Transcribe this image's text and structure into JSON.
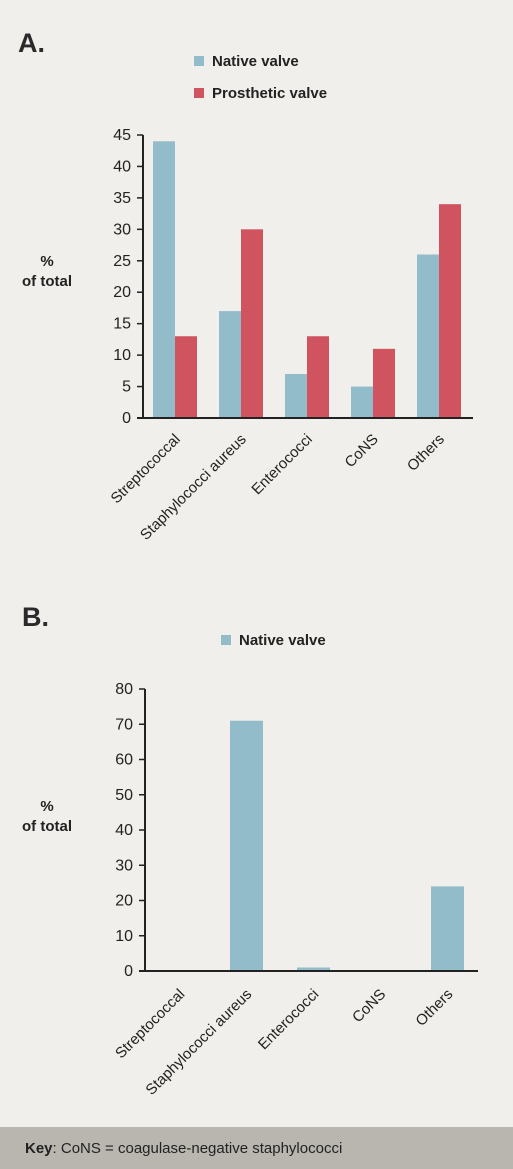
{
  "colors": {
    "native": "#93bccb",
    "prosthetic": "#d05360",
    "axis": "#222222",
    "background": "#f1efeb"
  },
  "chart_data": [
    {
      "type": "bar",
      "panel_label": "A.",
      "categories": [
        "Streptococcal",
        "Staphylococci aureus",
        "Enterococci",
        "CoNS",
        "Others"
      ],
      "series": [
        {
          "name": "Native valve",
          "values": [
            44,
            17,
            7,
            5,
            26
          ]
        },
        {
          "name": "Prosthetic valve",
          "values": [
            13,
            30,
            13,
            11,
            34
          ]
        }
      ],
      "ylabel_line1": "%",
      "ylabel_line2": "of total",
      "ylim": [
        0,
        45
      ],
      "yticks": [
        0,
        5,
        10,
        15,
        20,
        25,
        30,
        35,
        40,
        45
      ],
      "grid": false,
      "legend_position": "top"
    },
    {
      "type": "bar",
      "panel_label": "B.",
      "categories": [
        "Streptococcal",
        "Staphylococci aureus",
        "Enterococci",
        "CoNS",
        "Others"
      ],
      "series": [
        {
          "name": "Native valve",
          "values": [
            0,
            71,
            1,
            0,
            24
          ]
        }
      ],
      "ylabel_line1": "%",
      "ylabel_line2": "of total",
      "ylim": [
        0,
        80
      ],
      "yticks": [
        0,
        10,
        20,
        30,
        40,
        50,
        60,
        70,
        80
      ],
      "grid": false,
      "legend_position": "top"
    }
  ],
  "key": {
    "label": "Key",
    "text": ": CoNS = coagulase-negative staphylococci"
  }
}
